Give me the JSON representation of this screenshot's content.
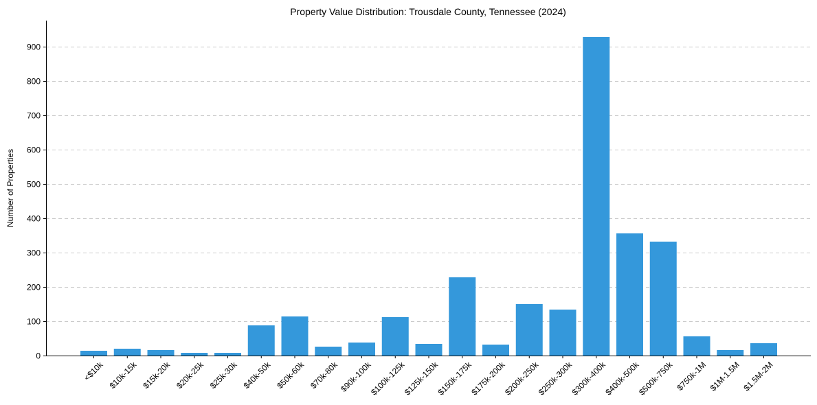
{
  "chart_data": {
    "type": "bar",
    "title": "Property Value Distribution: Trousdale County, Tennessee (2024)",
    "xlabel": "",
    "ylabel": "Number of Properties",
    "categories": [
      "<$10k",
      "$10k-15k",
      "$15k-20k",
      "$20k-25k",
      "$25k-30k",
      "$40k-50k",
      "$50k-60k",
      "$70k-80k",
      "$90k-100k",
      "$100k-125k",
      "$125k-150k",
      "$150k-175k",
      "$175k-200k",
      "$200k-250k",
      "$250k-300k",
      "$300k-400k",
      "$400k-500k",
      "$500k-750k",
      "$750k-1M",
      "$1M-1.5M",
      "$1.5M-2M"
    ],
    "values": [
      14,
      20,
      16,
      8,
      8,
      88,
      114,
      26,
      38,
      112,
      34,
      228,
      32,
      150,
      134,
      928,
      356,
      332,
      56,
      16,
      36
    ],
    "ylim": [
      0,
      980
    ],
    "yticks": [
      0,
      100,
      200,
      300,
      400,
      500,
      600,
      700,
      800,
      900
    ],
    "grid": "y-dashed",
    "color": "#3498db"
  }
}
